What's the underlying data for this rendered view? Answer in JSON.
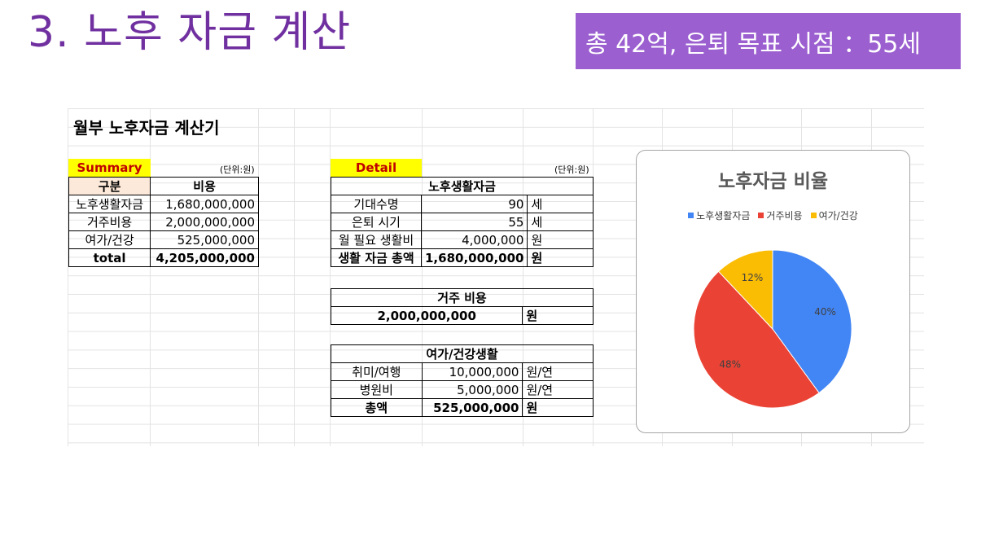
{
  "slide_title": "3. 노후 자금 계산",
  "goal_banner": "총 42억, 은퇴 목표 시점 ：55세",
  "calculator_title": "월부 노후자금 계산기",
  "summary": {
    "label": "Summary",
    "unit": "(단위:원)",
    "headers": [
      "구분",
      "비용"
    ],
    "rows": [
      {
        "name": "노후생활자금",
        "value": "1,680,000,000"
      },
      {
        "name": "거주비용",
        "value": "2,000,000,000"
      },
      {
        "name": "여가/건강",
        "value": "525,000,000"
      }
    ],
    "total_label": "total",
    "total_value": "4,205,000,000"
  },
  "detail": {
    "label": "Detail",
    "unit": "(단위:원)",
    "living": {
      "header": "노후생활자금",
      "rows": [
        {
          "name": "기대수명",
          "value": "90",
          "unit": "세"
        },
        {
          "name": "은퇴 시기",
          "value": "55",
          "unit": "세"
        },
        {
          "name": "월 필요 생활비",
          "value": "4,000,000",
          "unit": "원"
        }
      ],
      "total": {
        "name": "생활 자금 총액",
        "value": "1,680,000,000",
        "unit": "원"
      }
    },
    "housing": {
      "header": "거주 비용",
      "value": "2,000,000,000",
      "unit": "원"
    },
    "leisure": {
      "header": "여가/건강생활",
      "rows": [
        {
          "name": "취미/여행",
          "value": "10,000,000",
          "unit": "원/연"
        },
        {
          "name": "병원비",
          "value": "5,000,000",
          "unit": "원/연"
        }
      ],
      "total": {
        "name": "총액",
        "value": "525,000,000",
        "unit": "원"
      }
    }
  },
  "chart_data": {
    "type": "pie",
    "title": "노후자금 비율",
    "legend_position": "top",
    "categories": [
      "노후생활자금",
      "거주비용",
      "여가/건강"
    ],
    "values": [
      40,
      48,
      12
    ],
    "labels": [
      "40%",
      "48%",
      "12%"
    ],
    "colors": [
      "#4285f4",
      "#ea4335",
      "#fbbc04"
    ]
  }
}
